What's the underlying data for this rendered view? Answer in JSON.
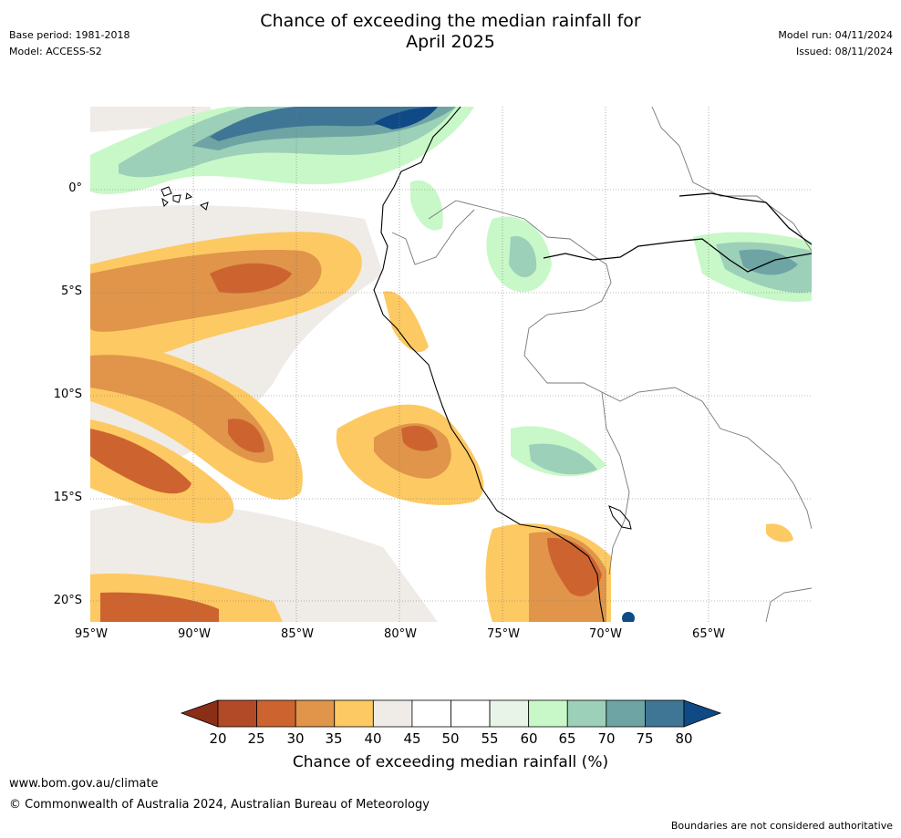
{
  "header": {
    "title_line1": "Chance of exceeding the median rainfall for",
    "title_line2": "April 2025",
    "base_period": "Base period: 1981-2018",
    "model": "Model: ACCESS-S2",
    "model_run": "Model run: 04/11/2024",
    "issued": "Issued: 08/11/2024"
  },
  "map": {
    "lat_labels": [
      "0°",
      "5°S",
      "10°S",
      "15°S",
      "20°S"
    ],
    "lon_labels": [
      "95°W",
      "90°W",
      "85°W",
      "80°W",
      "75°W",
      "70°W",
      "65°W"
    ],
    "lat_range": [
      -21,
      4
    ],
    "lon_range": [
      -95,
      -60
    ]
  },
  "colorbar": {
    "ticks": [
      "20",
      "25",
      "30",
      "35",
      "40",
      "45",
      "50",
      "55",
      "60",
      "65",
      "70",
      "75",
      "80"
    ],
    "colors": [
      "#8b2e16",
      "#b34a27",
      "#cd6430",
      "#e0954a",
      "#fdc963",
      "#efebe7",
      "#ffffff",
      "#ffffff",
      "#e8f4e8",
      "#c8f8c8",
      "#9cd0b8",
      "#6ea4a4",
      "#3f7696",
      "#0f4a86"
    ],
    "title": "Chance of exceeding median rainfall (%)"
  },
  "footer": {
    "url": "www.bom.gov.au/climate",
    "copyright": "© Commonwealth of Australia 2024, Australian Bureau of Meteorology",
    "disclaimer": "Boundaries are not considered authoritative"
  }
}
